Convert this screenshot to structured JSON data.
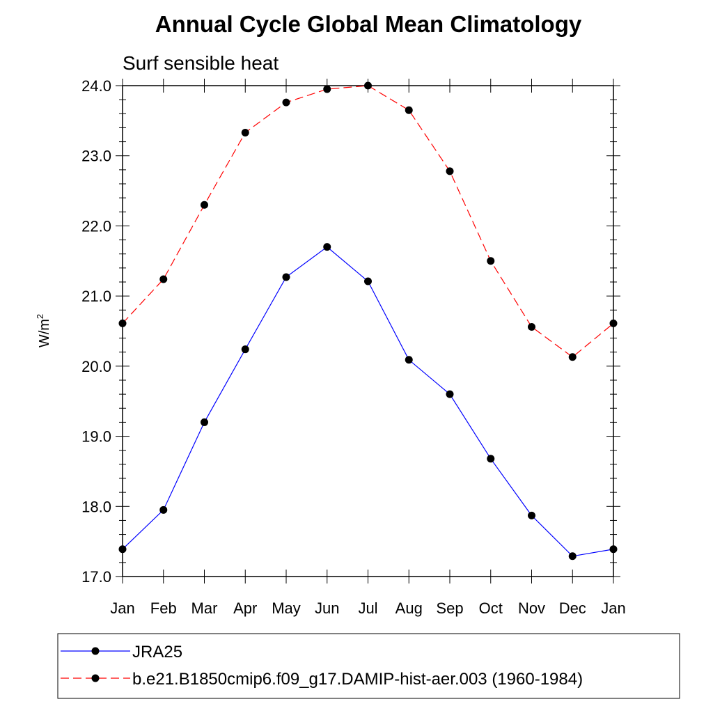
{
  "chart_data": {
    "type": "line",
    "title": "Annual Cycle Global Mean Climatology",
    "subtitle": "Surf sensible heat",
    "ylabel": "W/m",
    "ylabel_sup": "2",
    "xlabel": "",
    "categories": [
      "Jan",
      "Feb",
      "Mar",
      "Apr",
      "May",
      "Jun",
      "Jul",
      "Aug",
      "Sep",
      "Oct",
      "Nov",
      "Dec",
      "Jan"
    ],
    "ylim": [
      17.0,
      24.0
    ],
    "yticks": [
      "17.0",
      "18.0",
      "19.0",
      "20.0",
      "21.0",
      "22.0",
      "23.0",
      "24.0"
    ],
    "grid": false,
    "legend_position": "bottom",
    "series": [
      {
        "name": "JRA25",
        "color": "#0000ff",
        "dash": "solid",
        "values": [
          17.39,
          17.95,
          19.2,
          20.24,
          21.27,
          21.7,
          21.21,
          20.09,
          19.6,
          18.68,
          17.87,
          17.29,
          17.39
        ]
      },
      {
        "name": "b.e21.B1850cmip6.f09_g17.DAMIP-hist-aer.003 (1960-1984)",
        "color": "#ff0000",
        "dash": "dashed",
        "values": [
          20.61,
          21.24,
          22.3,
          23.33,
          23.76,
          23.95,
          24.0,
          23.65,
          22.78,
          21.5,
          20.56,
          20.13,
          20.61
        ]
      }
    ]
  }
}
